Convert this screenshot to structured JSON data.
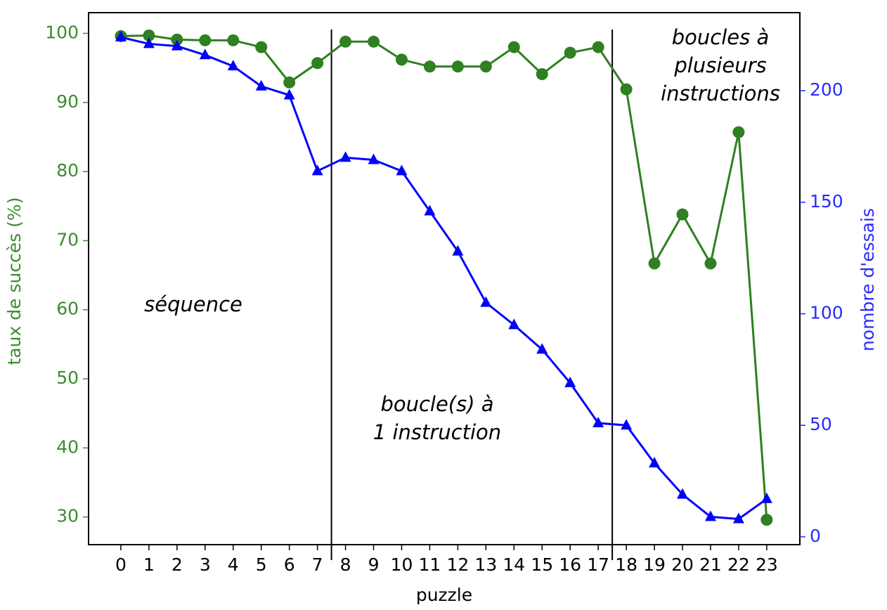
{
  "chart_data": {
    "type": "line",
    "xlabel": "puzzle",
    "ylabel": "taux de succès (%)",
    "y2label": "nombre d'essais",
    "x": [
      0,
      1,
      2,
      3,
      4,
      5,
      6,
      7,
      8,
      9,
      10,
      11,
      12,
      13,
      14,
      15,
      16,
      17,
      18,
      19,
      20,
      21,
      22,
      23
    ],
    "xticks": [
      0,
      1,
      2,
      3,
      4,
      5,
      6,
      7,
      8,
      9,
      10,
      11,
      12,
      13,
      14,
      15,
      16,
      17,
      18,
      19,
      20,
      21,
      22,
      23
    ],
    "xlim": [
      -1.15,
      24.18
    ],
    "ylim": [
      26,
      103
    ],
    "yticks": [
      30,
      40,
      50,
      60,
      70,
      80,
      90,
      100
    ],
    "y2lim": [
      -3.5,
      235
    ],
    "y2ticks": [
      0,
      50,
      100,
      150,
      200
    ],
    "yaxis_color": "#3d8b2f",
    "y2axis_color": "#2a2aff",
    "series": [
      {
        "name": "taux de succès",
        "color": "#2e8020",
        "marker": "circle",
        "values": [
          99.6,
          99.7,
          99.1,
          99.0,
          99.0,
          98.0,
          92.9,
          95.7,
          98.8,
          98.8,
          96.2,
          95.2,
          95.2,
          95.2,
          98.0,
          94.1,
          97.2,
          98.0,
          91.9,
          66.7,
          73.8,
          66.7,
          85.7,
          29.6
        ]
      },
      {
        "name": "nombre d'essais",
        "color": "#0000ff",
        "marker": "triangle",
        "axis": "y2",
        "values": [
          224,
          221,
          220,
          216,
          211,
          202,
          198,
          164,
          170,
          169,
          164,
          146,
          128,
          105,
          95,
          84,
          69,
          51,
          50,
          33,
          19,
          9,
          8,
          17
        ]
      }
    ],
    "vlines": [
      7.5,
      17.5
    ],
    "annotations": [
      {
        "lines": [
          "séquence"
        ]
      },
      {
        "lines": [
          "boucle(s) à",
          "1 instruction"
        ]
      },
      {
        "lines": [
          "boucles à",
          "plusieurs",
          "instructions"
        ]
      }
    ]
  }
}
